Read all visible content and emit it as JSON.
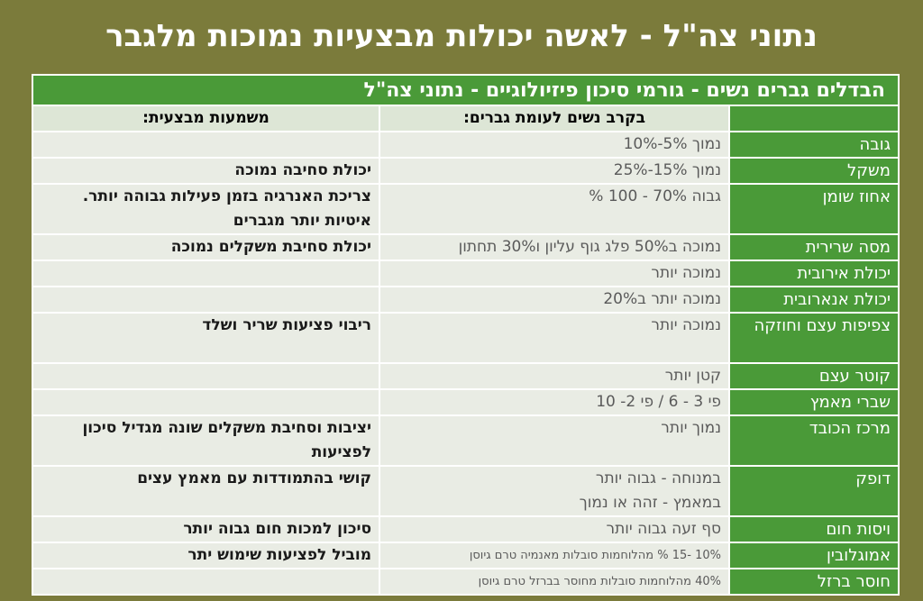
{
  "title": "נתוני צה\"ל - לאשה יכולות מבצעיות נמוכות מלגבר",
  "table": {
    "header": "הבדלים גברים נשים - גורמי סיכון פיזיולוגיים - נתוני צה\"ל",
    "col_headers": [
      "",
      "בקרב נשים לעומת גברים:",
      "משמעות מבצעית:"
    ],
    "rows": [
      {
        "factor": "גובה",
        "women": "נמוך 5%-10%",
        "meaning": ""
      },
      {
        "factor": "משקל",
        "women": "נמוך 15%-25%",
        "meaning": "יכולת סחיבה נמוכה"
      },
      {
        "factor": "אחוז שומן",
        "women": "גבוה 70% - 100 %",
        "meaning": "צריכת האנרגיה בזמן פעילות גבוהה יותר. איטיות יותר מגברים"
      },
      {
        "factor": "מסה שרירית",
        "women": "נמוכה ב50% פלג גוף עליון ו30% תחתון",
        "meaning": "יכולת סחיבת משקלים נמוכה"
      },
      {
        "factor": "יכולת אירובית",
        "women": "נמוכה יותר",
        "meaning": ""
      },
      {
        "factor": "יכולת אנארובית",
        "women": "נמוכה יותר ב20%",
        "meaning": ""
      },
      {
        "factor": "צפיפות עצם וחוזקה",
        "women": "נמוכה יותר",
        "meaning": "ריבוי פציעות שריר ושלד"
      },
      {
        "factor": "קוטר עצם",
        "women": "קטן יותר",
        "meaning": ""
      },
      {
        "factor": "שברי מאמץ",
        "women": "פי 3 - 6 / פי 2- 10",
        "meaning": ""
      },
      {
        "factor": "מרכז הכובד",
        "women": "נמוך יותר",
        "meaning": "יציבות וסחיבת משקלים שונה מגדיל סיכון לפציעות"
      },
      {
        "factor": "דופק",
        "women": "במנוחה - גבוה יותר",
        "women2": "במאמץ - זהה או נמוך",
        "meaning": "קושי בהתמודדות עם מאמץ עצים"
      },
      {
        "factor": "ויסות חום",
        "women": "סף זעה גבוה יותר",
        "meaning": "סיכון למכות חום גבוה יותר"
      },
      {
        "factor": "אמוגלובין",
        "women": "10% -15 % מהלוחמות סובלות מאנמיה טרם גיוסן",
        "meaning": "מוביל לפציעות שימוש יתר"
      },
      {
        "factor": "חוסר ברזל",
        "women": "40% מהלוחמות סובלות מחוסר בברזל טרם גיוסן",
        "meaning": ""
      }
    ]
  }
}
